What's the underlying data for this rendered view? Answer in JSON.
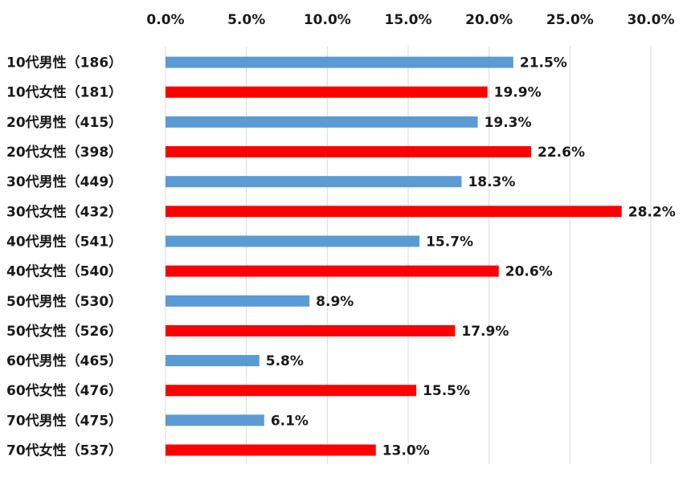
{
  "chart_data": {
    "type": "bar",
    "orientation": "horizontal",
    "title": "",
    "xlabel": "",
    "ylabel": "",
    "xlim": [
      0,
      30
    ],
    "x_ticks": [
      "0.0%",
      "5.0%",
      "10.0%",
      "15.0%",
      "20.0%",
      "25.0%",
      "30.0%"
    ],
    "x_tick_values": [
      0,
      5,
      10,
      15,
      20,
      25,
      30
    ],
    "axis_position": "top",
    "grid": true,
    "legend": "none",
    "colors": {
      "male": "#5b9bd5",
      "female": "#ff0000"
    },
    "categories": [
      "10代男性（186）",
      "10代女性（181）",
      "20代男性（415）",
      "20代女性（398）",
      "30代男性（449）",
      "30代女性（432）",
      "40代男性（541）",
      "40代女性（540）",
      "50代男性（530）",
      "50代女性（526）",
      "60代男性（465）",
      "60代女性（476）",
      "70代男性（475）",
      "70代女性（537）"
    ],
    "values": [
      21.5,
      19.9,
      19.3,
      22.6,
      18.3,
      28.2,
      15.7,
      20.6,
      8.9,
      17.9,
      5.8,
      15.5,
      6.1,
      13.0
    ],
    "data_labels": [
      "21.5%",
      "19.9%",
      "19.3%",
      "22.6%",
      "18.3%",
      "28.2%",
      "15.7%",
      "20.6%",
      "8.9%",
      "17.9%",
      "5.8%",
      "15.5%",
      "6.1%",
      "13.0%"
    ],
    "groups": [
      "male",
      "female",
      "male",
      "female",
      "male",
      "female",
      "male",
      "female",
      "male",
      "female",
      "male",
      "female",
      "male",
      "female"
    ]
  }
}
